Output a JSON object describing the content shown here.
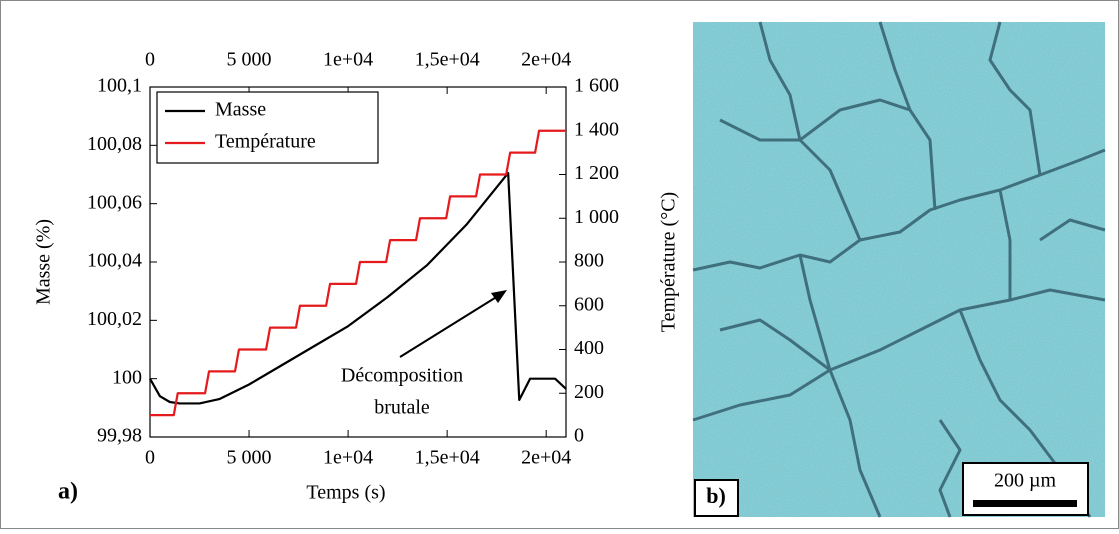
{
  "chart_data": {
    "type": "line",
    "panel_label": "a)",
    "xlabel": "Temps (s)",
    "ylabel": "Masse (%)",
    "y2label": "Température (°C)",
    "xlim": [
      0,
      21000
    ],
    "ylim": [
      99.98,
      100.1
    ],
    "y2lim": [
      0,
      1600
    ],
    "xticks": [
      0,
      {
        "value": 5000,
        "label": "5 000"
      },
      {
        "value": 10000,
        "label": "1e+04"
      },
      {
        "value": 15000,
        "label": "1,5e+04"
      },
      {
        "value": 20000,
        "label": "2e+04"
      }
    ],
    "x2ticks": [
      0,
      {
        "value": 5000,
        "label": "5 000"
      },
      {
        "value": 10000,
        "label": "1e+04"
      },
      {
        "value": 15000,
        "label": "1,5e+04"
      },
      {
        "value": 20000,
        "label": "2e+04"
      }
    ],
    "yticks": [
      {
        "value": 99.98,
        "label": "99,98"
      },
      100,
      {
        "value": 100.02,
        "label": "100,02"
      },
      {
        "value": 100.04,
        "label": "100,04"
      },
      {
        "value": 100.06,
        "label": "100,06"
      },
      {
        "value": 100.08,
        "label": "100,08"
      },
      {
        "value": 100.1,
        "label": "100,1"
      }
    ],
    "y2ticks": [
      0,
      200,
      400,
      600,
      800,
      {
        "value": 1000,
        "label": "1 000"
      },
      {
        "value": 1200,
        "label": "1 200"
      },
      {
        "value": 1400,
        "label": "1 400"
      },
      {
        "value": 1600,
        "label": "1 600"
      }
    ],
    "legend": "upper left",
    "series": [
      {
        "name": "Masse",
        "color": "#000000",
        "x": [
          0,
          500,
          1000,
          1500,
          2500,
          3500,
          5000,
          6500,
          8000,
          10000,
          12000,
          14000,
          16000,
          18080,
          18640,
          19190,
          20450,
          21000
        ],
        "values": [
          100.0,
          99.994,
          99.992,
          99.9915,
          99.9915,
          99.993,
          99.998,
          100.004,
          100.01,
          100.018,
          100.028,
          100.039,
          100.053,
          100.0705,
          99.9927,
          100.0,
          100.0,
          99.9965
        ]
      },
      {
        "name": "Température",
        "color": "#e41a1c",
        "axis": "y2",
        "x": [
          0,
          1200,
          1400,
          2780,
          2980,
          4290,
          4490,
          5860,
          6060,
          7370,
          7570,
          8890,
          9090,
          10400,
          10600,
          11920,
          12120,
          13430,
          13630,
          14950,
          15150,
          16460,
          16660,
          17980,
          18180,
          19440,
          19640,
          21000
        ],
        "values": [
          100,
          100,
          200,
          200,
          300,
          300,
          400,
          400,
          500,
          500,
          600,
          600,
          700,
          700,
          800,
          800,
          900,
          900,
          1000,
          1000,
          1100,
          1100,
          1200,
          1200,
          1300,
          1300,
          1400,
          1400
        ]
      }
    ],
    "annotation": [
      "Décomposition",
      "brutale"
    ]
  },
  "micrograph": {
    "label": "b)",
    "scale_bar": "200 µm"
  }
}
